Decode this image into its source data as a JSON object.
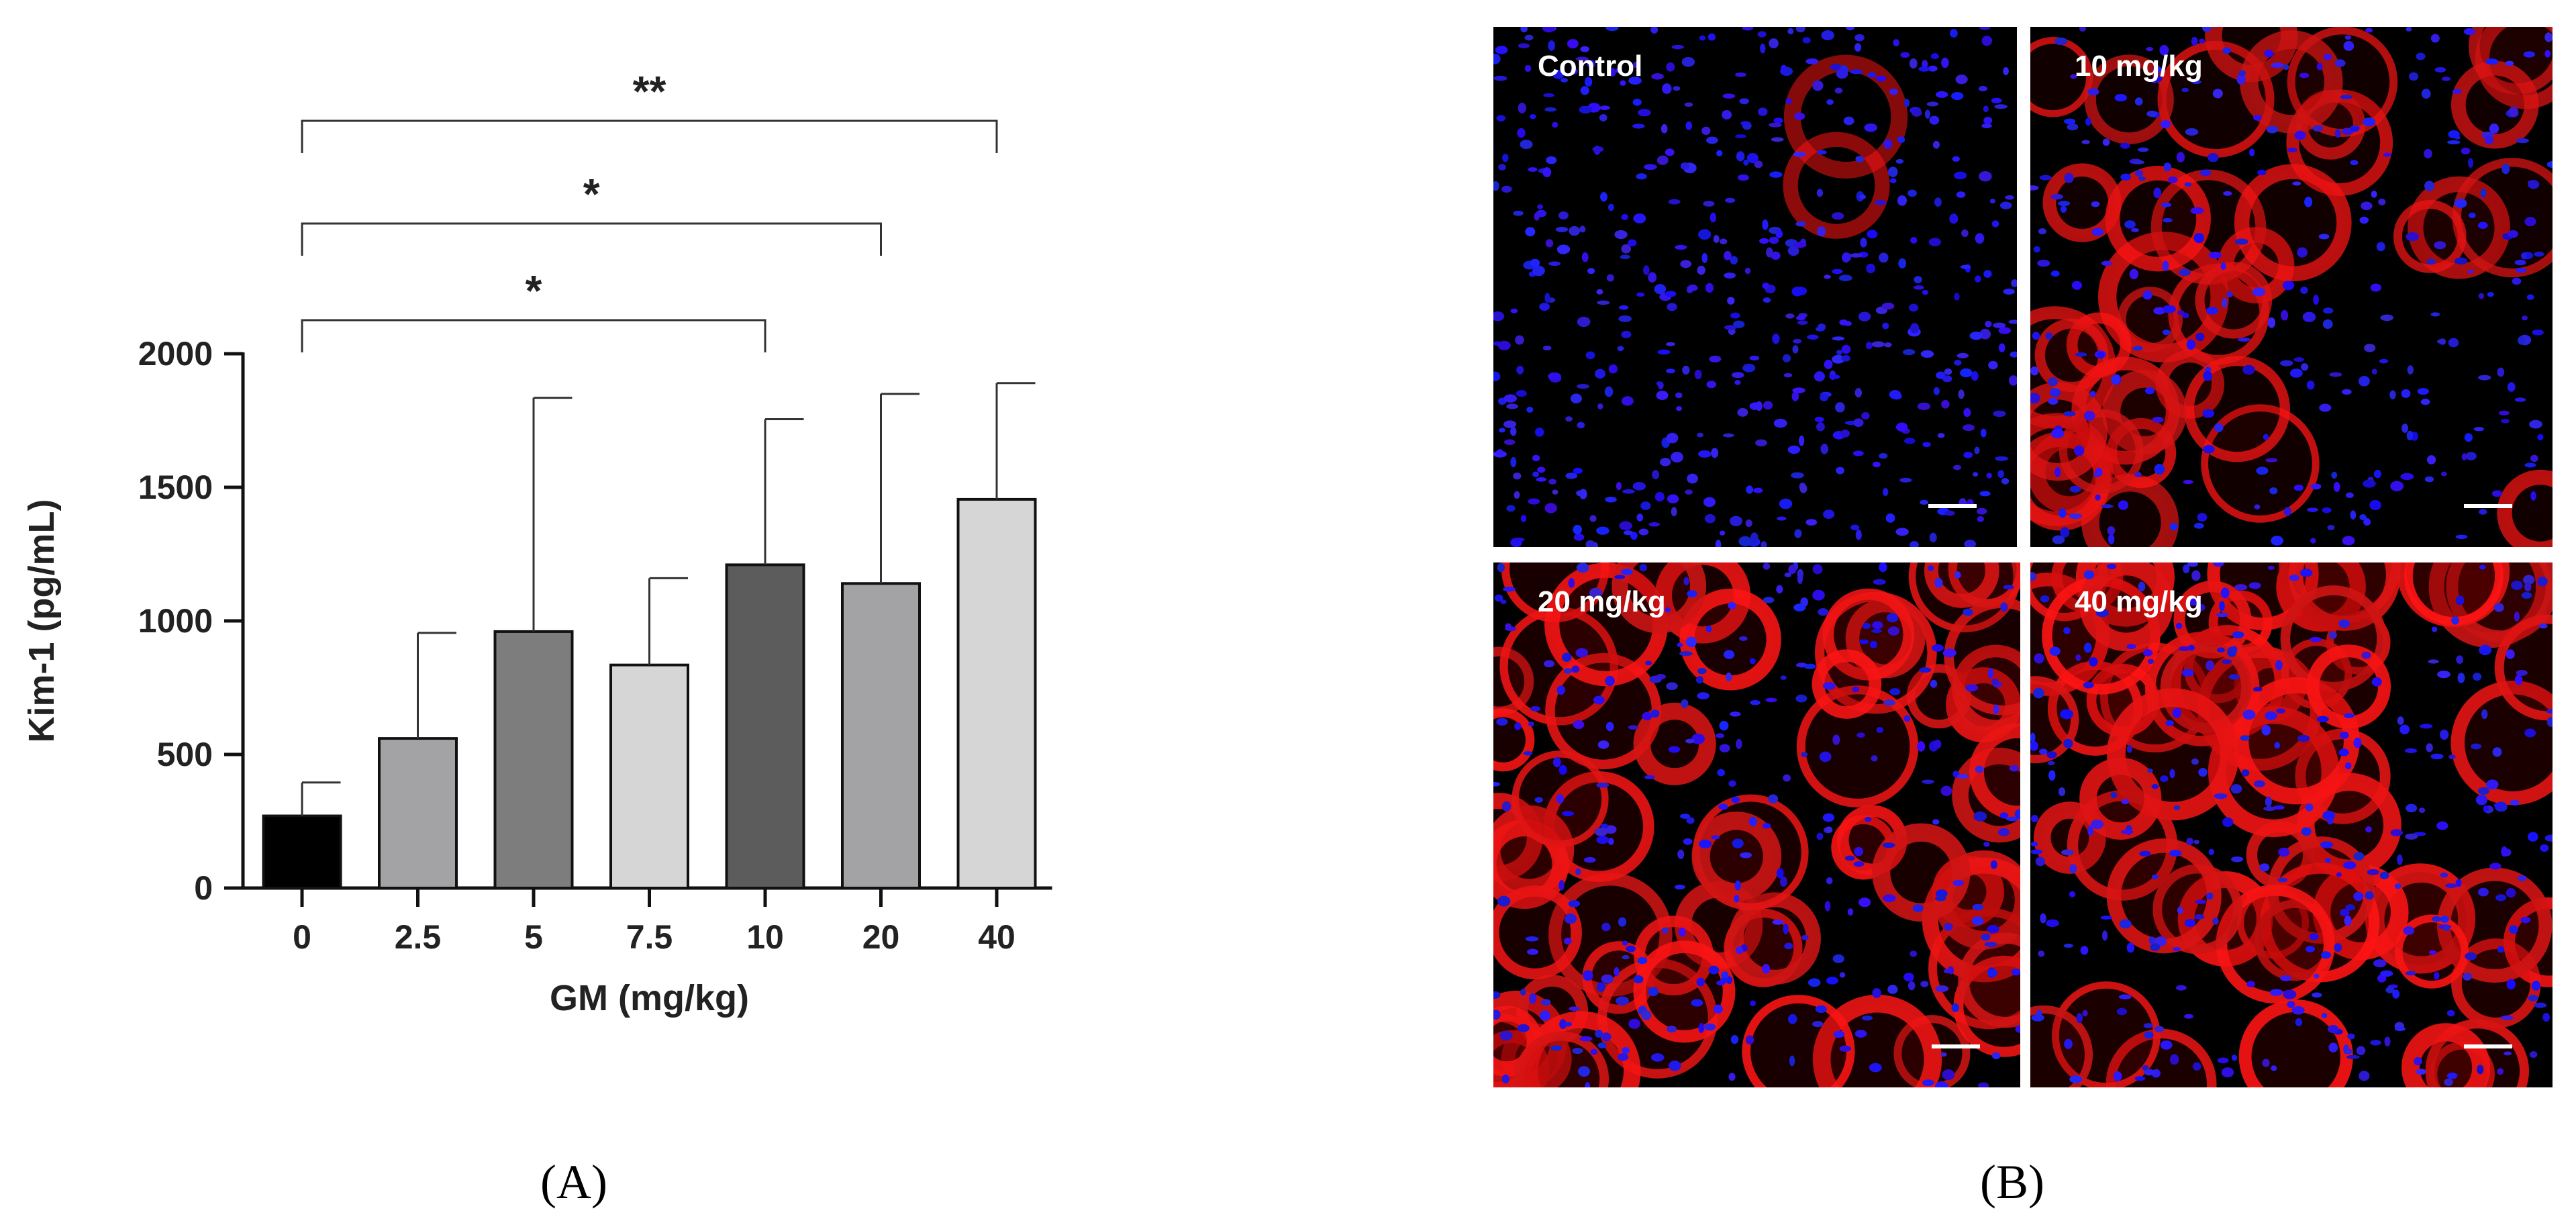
{
  "chart_data": {
    "type": "bar",
    "xlabel": "GM (mg/kg)",
    "ylabel": "Kim-1 (pg/mL)",
    "ylim": [
      0,
      2000
    ],
    "yticks": [
      "0",
      "500",
      "1000",
      "1500",
      "2000"
    ],
    "categories": [
      "0",
      "2.5",
      "5",
      "7.5",
      "10",
      "20",
      "40"
    ],
    "values": [
      270,
      560,
      960,
      835,
      1210,
      1140,
      1455
    ],
    "errors_upper": [
      395,
      955,
      1835,
      1160,
      1755,
      1850,
      1890
    ],
    "bar_colors": [
      "#000000",
      "#a3a3a6",
      "#7d7d7d",
      "#d6d6d6",
      "#5c5c5c",
      "#a3a3a6",
      "#d6d6d6"
    ],
    "significance": [
      {
        "from": "0",
        "to": "10",
        "label": "*"
      },
      {
        "from": "0",
        "to": "20",
        "label": "*"
      },
      {
        "from": "0",
        "to": "40",
        "label": "**"
      }
    ]
  },
  "panels": {
    "a_label": "(A)",
    "b_label": "(B)",
    "micrographs": [
      {
        "label": "Control",
        "red_intensity": 0.03
      },
      {
        "label": "10 mg/kg",
        "red_intensity": 0.55
      },
      {
        "label": "20 mg/kg",
        "red_intensity": 0.85
      },
      {
        "label": "40 mg/kg",
        "red_intensity": 0.9
      }
    ]
  }
}
